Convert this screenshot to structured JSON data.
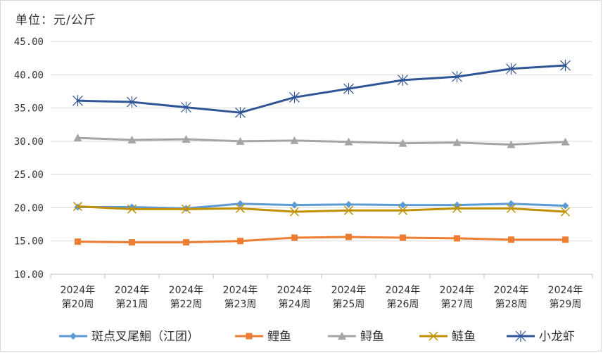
{
  "unit_label": "单位：元/公斤",
  "chart_data": {
    "type": "line",
    "ylim": [
      10,
      45
    ],
    "yticks": [
      "10.00",
      "15.00",
      "20.00",
      "25.00",
      "30.00",
      "35.00",
      "40.00",
      "45.00"
    ],
    "categories": [
      [
        "2024年",
        "第20周"
      ],
      [
        "2024年",
        "第21周"
      ],
      [
        "2024年",
        "第22周"
      ],
      [
        "2024年",
        "第23周"
      ],
      [
        "2024年",
        "第24周"
      ],
      [
        "2024年",
        "第25周"
      ],
      [
        "2024年",
        "第26周"
      ],
      [
        "2024年",
        "第27周"
      ],
      [
        "2024年",
        "第28周"
      ],
      [
        "2024年",
        "第29周"
      ]
    ],
    "grid": true,
    "legend_position": "bottom",
    "series": [
      {
        "name": "斑点叉尾鮰（江团）",
        "color": "#5b9bd5",
        "marker": "diamond",
        "values": [
          20.1,
          20.1,
          19.9,
          20.6,
          20.4,
          20.5,
          20.4,
          20.4,
          20.6,
          20.3
        ]
      },
      {
        "name": "鲤鱼",
        "color": "#ed7d31",
        "marker": "square",
        "values": [
          14.9,
          14.8,
          14.8,
          15.0,
          15.5,
          15.6,
          15.5,
          15.4,
          15.2,
          15.2
        ]
      },
      {
        "name": "鲟鱼",
        "color": "#a5a5a5",
        "marker": "triangle",
        "values": [
          30.5,
          30.2,
          30.3,
          30.0,
          30.1,
          29.9,
          29.7,
          29.8,
          29.5,
          29.9
        ]
      },
      {
        "name": "鲢鱼",
        "color": "#bf9000",
        "marker": "x",
        "values": [
          20.2,
          19.8,
          19.8,
          19.9,
          19.4,
          19.6,
          19.6,
          19.9,
          19.9,
          19.4
        ]
      },
      {
        "name": "小龙虾",
        "color": "#2f5597",
        "marker": "star",
        "values": [
          36.1,
          35.9,
          35.1,
          34.3,
          36.6,
          37.9,
          39.2,
          39.7,
          40.9,
          41.4
        ]
      }
    ]
  }
}
